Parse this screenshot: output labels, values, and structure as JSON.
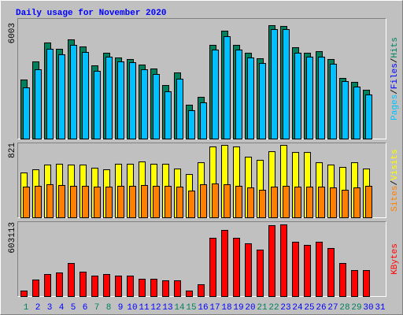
{
  "chart_data": [
    {
      "type": "bar",
      "title": "Daily usage for November 2020",
      "legend_separator": "/",
      "ylim": [
        0,
        6003
      ],
      "yticks": [
        6003
      ],
      "series": [
        {
          "name": "Hits",
          "color": "#00805c",
          "values": [
            3127,
            4085,
            5087,
            4753,
            5253,
            4878,
            3877,
            4544,
            4294,
            4211,
            3919,
            3710,
            2835,
            3502,
            1793,
            2210,
            4961,
            5712,
            4961,
            4544,
            4252,
            6003,
            5962,
            4836,
            4544,
            4628,
            4211,
            3210,
            3002,
            2585,
            null
          ]
        },
        {
          "name": "Files",
          "color": "#0000ff",
          "values": [
            null,
            null,
            null,
            null,
            null,
            null,
            null,
            null,
            null,
            null,
            null,
            null,
            null,
            null,
            null,
            null,
            null,
            null,
            null,
            null,
            null,
            null,
            null,
            null,
            null,
            null,
            null,
            null,
            null,
            null,
            null
          ]
        },
        {
          "name": "Pages",
          "color": "#00c0ff",
          "values": [
            2710,
            3669,
            4753,
            4461,
            4961,
            4586,
            3585,
            4336,
            4085,
            4044,
            3669,
            3419,
            2502,
            3169,
            1501,
            1918,
            4711,
            5420,
            4711,
            4294,
            4002,
            5795,
            5795,
            4544,
            4336,
            4336,
            3961,
            3043,
            2752,
            2335,
            null
          ]
        }
      ]
    },
    {
      "type": "bar",
      "legend_separator": "/",
      "ylim": [
        0,
        821
      ],
      "yticks": [
        821
      ],
      "series": [
        {
          "name": "Visits",
          "color": "#ffff00",
          "values": [
            508,
            544,
            598,
            607,
            598,
            598,
            562,
            544,
            607,
            607,
            633,
            607,
            607,
            553,
            491,
            624,
            803,
            821,
            803,
            687,
            651,
            749,
            821,
            740,
            740,
            624,
            598,
            571,
            624,
            553,
            null
          ]
        },
        {
          "name": "Sites",
          "color": "#ff8000",
          "values": [
            348,
            357,
            375,
            366,
            357,
            357,
            348,
            348,
            357,
            357,
            366,
            357,
            357,
            348,
            303,
            375,
            384,
            375,
            357,
            339,
            312,
            348,
            357,
            348,
            348,
            348,
            339,
            312,
            339,
            357,
            null
          ]
        }
      ]
    },
    {
      "type": "bar",
      "ylim": [
        0,
        603113
      ],
      "yticks": [
        603113
      ],
      "categories": [
        1,
        2,
        3,
        4,
        5,
        6,
        7,
        8,
        9,
        10,
        11,
        12,
        13,
        14,
        15,
        16,
        17,
        18,
        19,
        20,
        21,
        22,
        23,
        24,
        25,
        26,
        27,
        28,
        29,
        30,
        31
      ],
      "category_colors": [
        "#00805c",
        "#0000ff",
        "#0000ff",
        "#0000ff",
        "#0000ff",
        "#0000ff",
        "#00805c",
        "#00805c",
        "#0000ff",
        "#0000ff",
        "#0000ff",
        "#0000ff",
        "#0000ff",
        "#00805c",
        "#00805c",
        "#0000ff",
        "#0000ff",
        "#0000ff",
        "#0000ff",
        "#0000ff",
        "#00805c",
        "#00805c",
        "#0000ff",
        "#0000ff",
        "#0000ff",
        "#0000ff",
        "#0000ff",
        "#00805c",
        "#00805c",
        "#0000ff",
        "#0000ff"
      ],
      "series": [
        {
          "name": "KBytes",
          "color": "#ff0000",
          "values": [
            46396,
            139188,
            185584,
            198840,
            278376,
            205468,
            172328,
            185584,
            172328,
            172328,
            145816,
            145816,
            132560,
            132560,
            46396,
            99420,
            490472,
            556752,
            490472,
            444076,
            391052,
            596520,
            603113,
            457332,
            430820,
            457332,
            404308,
            278376,
            218724,
            218724,
            null
          ]
        }
      ]
    }
  ]
}
